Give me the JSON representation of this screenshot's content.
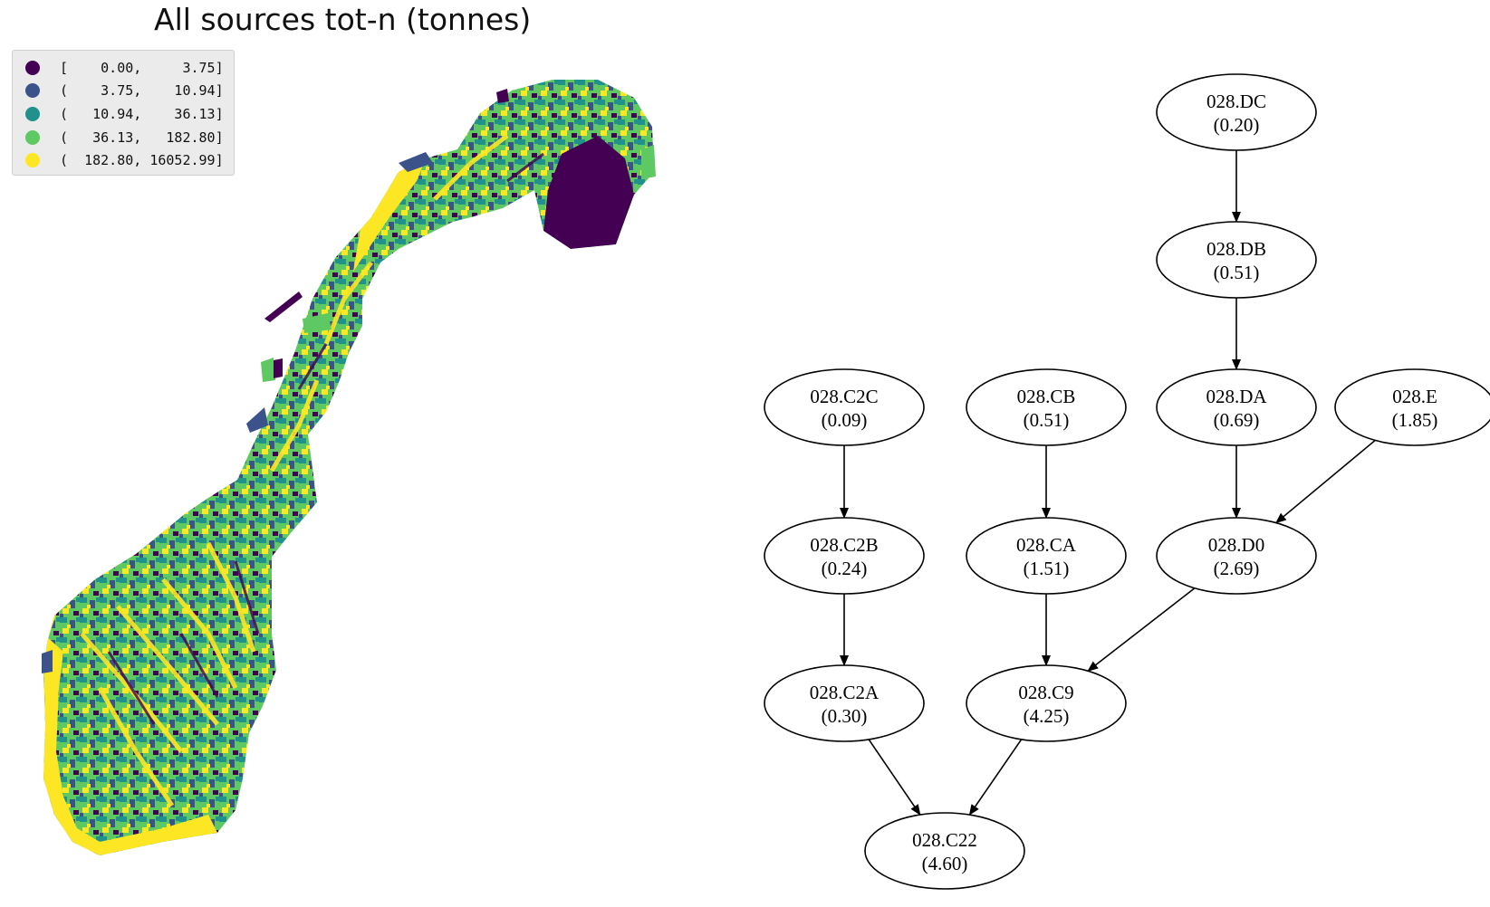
{
  "map": {
    "title": "All sources tot-n (tonnes)",
    "legend": [
      {
        "label": "[    0.00,     3.75]",
        "color": "#440154"
      },
      {
        "label": "(    3.75,    10.94]",
        "color": "#3b528b"
      },
      {
        "label": "(   10.94,    36.13]",
        "color": "#21918c"
      },
      {
        "label": "(   36.13,   182.80]",
        "color": "#5ec962"
      },
      {
        "label": "(  182.80, 16052.99]",
        "color": "#fde725"
      }
    ]
  },
  "graph": {
    "nodes": [
      {
        "id": "028.DC",
        "value": "(0.20)"
      },
      {
        "id": "028.DB",
        "value": "(0.51)"
      },
      {
        "id": "028.C2C",
        "value": "(0.09)"
      },
      {
        "id": "028.CB",
        "value": "(0.51)"
      },
      {
        "id": "028.DA",
        "value": "(0.69)"
      },
      {
        "id": "028.E",
        "value": "(1.85)"
      },
      {
        "id": "028.C2B",
        "value": "(0.24)"
      },
      {
        "id": "028.CA",
        "value": "(1.51)"
      },
      {
        "id": "028.D0",
        "value": "(2.69)"
      },
      {
        "id": "028.C2A",
        "value": "(0.30)"
      },
      {
        "id": "028.C9",
        "value": "(4.25)"
      },
      {
        "id": "028.C22",
        "value": "(4.60)"
      }
    ],
    "edges": [
      [
        "028.DC",
        "028.DB"
      ],
      [
        "028.DB",
        "028.DA"
      ],
      [
        "028.C2C",
        "028.C2B"
      ],
      [
        "028.CB",
        "028.CA"
      ],
      [
        "028.DA",
        "028.D0"
      ],
      [
        "028.E",
        "028.D0"
      ],
      [
        "028.C2B",
        "028.C2A"
      ],
      [
        "028.CA",
        "028.C9"
      ],
      [
        "028.D0",
        "028.C9"
      ],
      [
        "028.C2A",
        "028.C22"
      ],
      [
        "028.C9",
        "028.C22"
      ]
    ]
  }
}
